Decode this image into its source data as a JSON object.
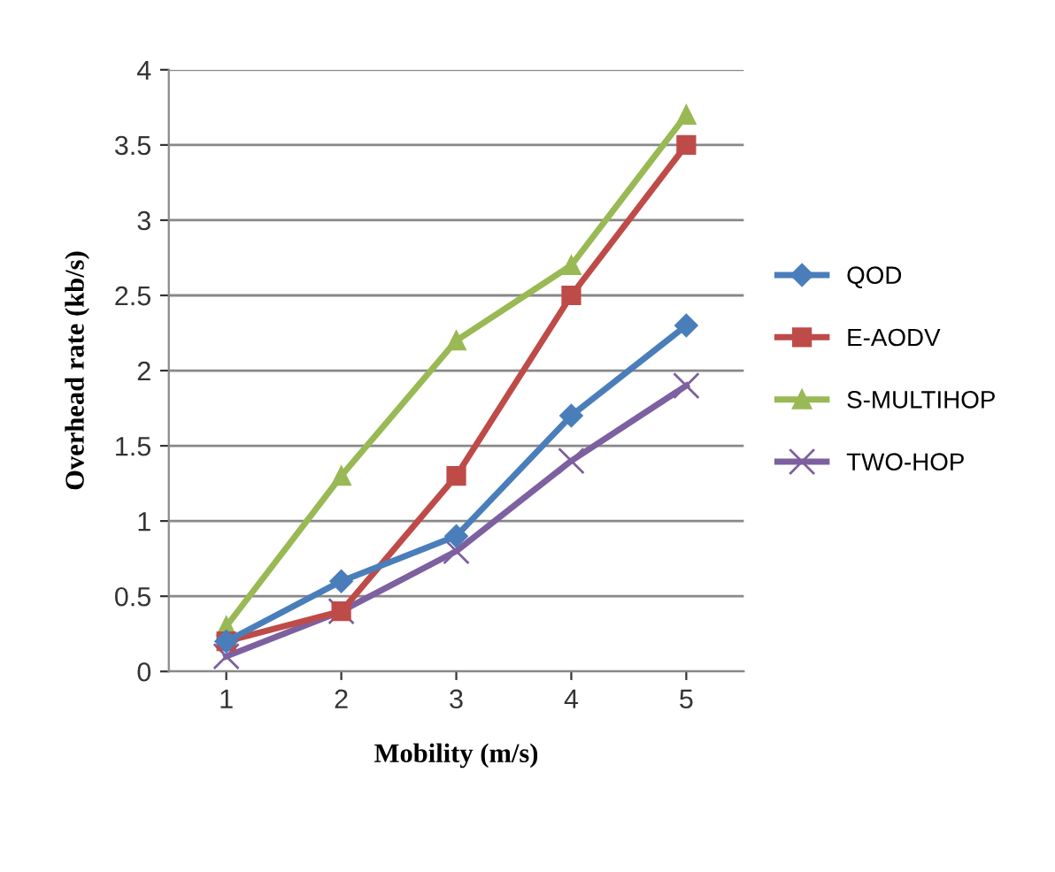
{
  "chart_data": {
    "type": "line",
    "xlabel": "Mobility (m/s)",
    "ylabel": "Overhead rate (kb/s)",
    "categories": [
      "1",
      "2",
      "3",
      "4",
      "5"
    ],
    "series": [
      {
        "name": "QOD",
        "color": "#4a7ebb",
        "marker": "diamond",
        "values": [
          0.2,
          0.6,
          0.9,
          1.7,
          2.3
        ]
      },
      {
        "name": "E-AODV",
        "color": "#be4b48",
        "marker": "square",
        "values": [
          0.2,
          0.4,
          1.3,
          2.5,
          3.5
        ]
      },
      {
        "name": "S-MULTIHOP",
        "color": "#98b954",
        "marker": "triangle",
        "values": [
          0.3,
          1.3,
          2.2,
          2.7,
          3.7
        ]
      },
      {
        "name": "TWO-HOP",
        "color": "#7d60a0",
        "marker": "cross",
        "values": [
          0.1,
          0.4,
          0.8,
          1.4,
          1.9
        ]
      }
    ],
    "ylim": [
      0,
      4
    ],
    "yticks": [
      0,
      0.5,
      1,
      1.5,
      2,
      2.5,
      3,
      3.5,
      4
    ],
    "grid": "y",
    "legend": "right"
  }
}
